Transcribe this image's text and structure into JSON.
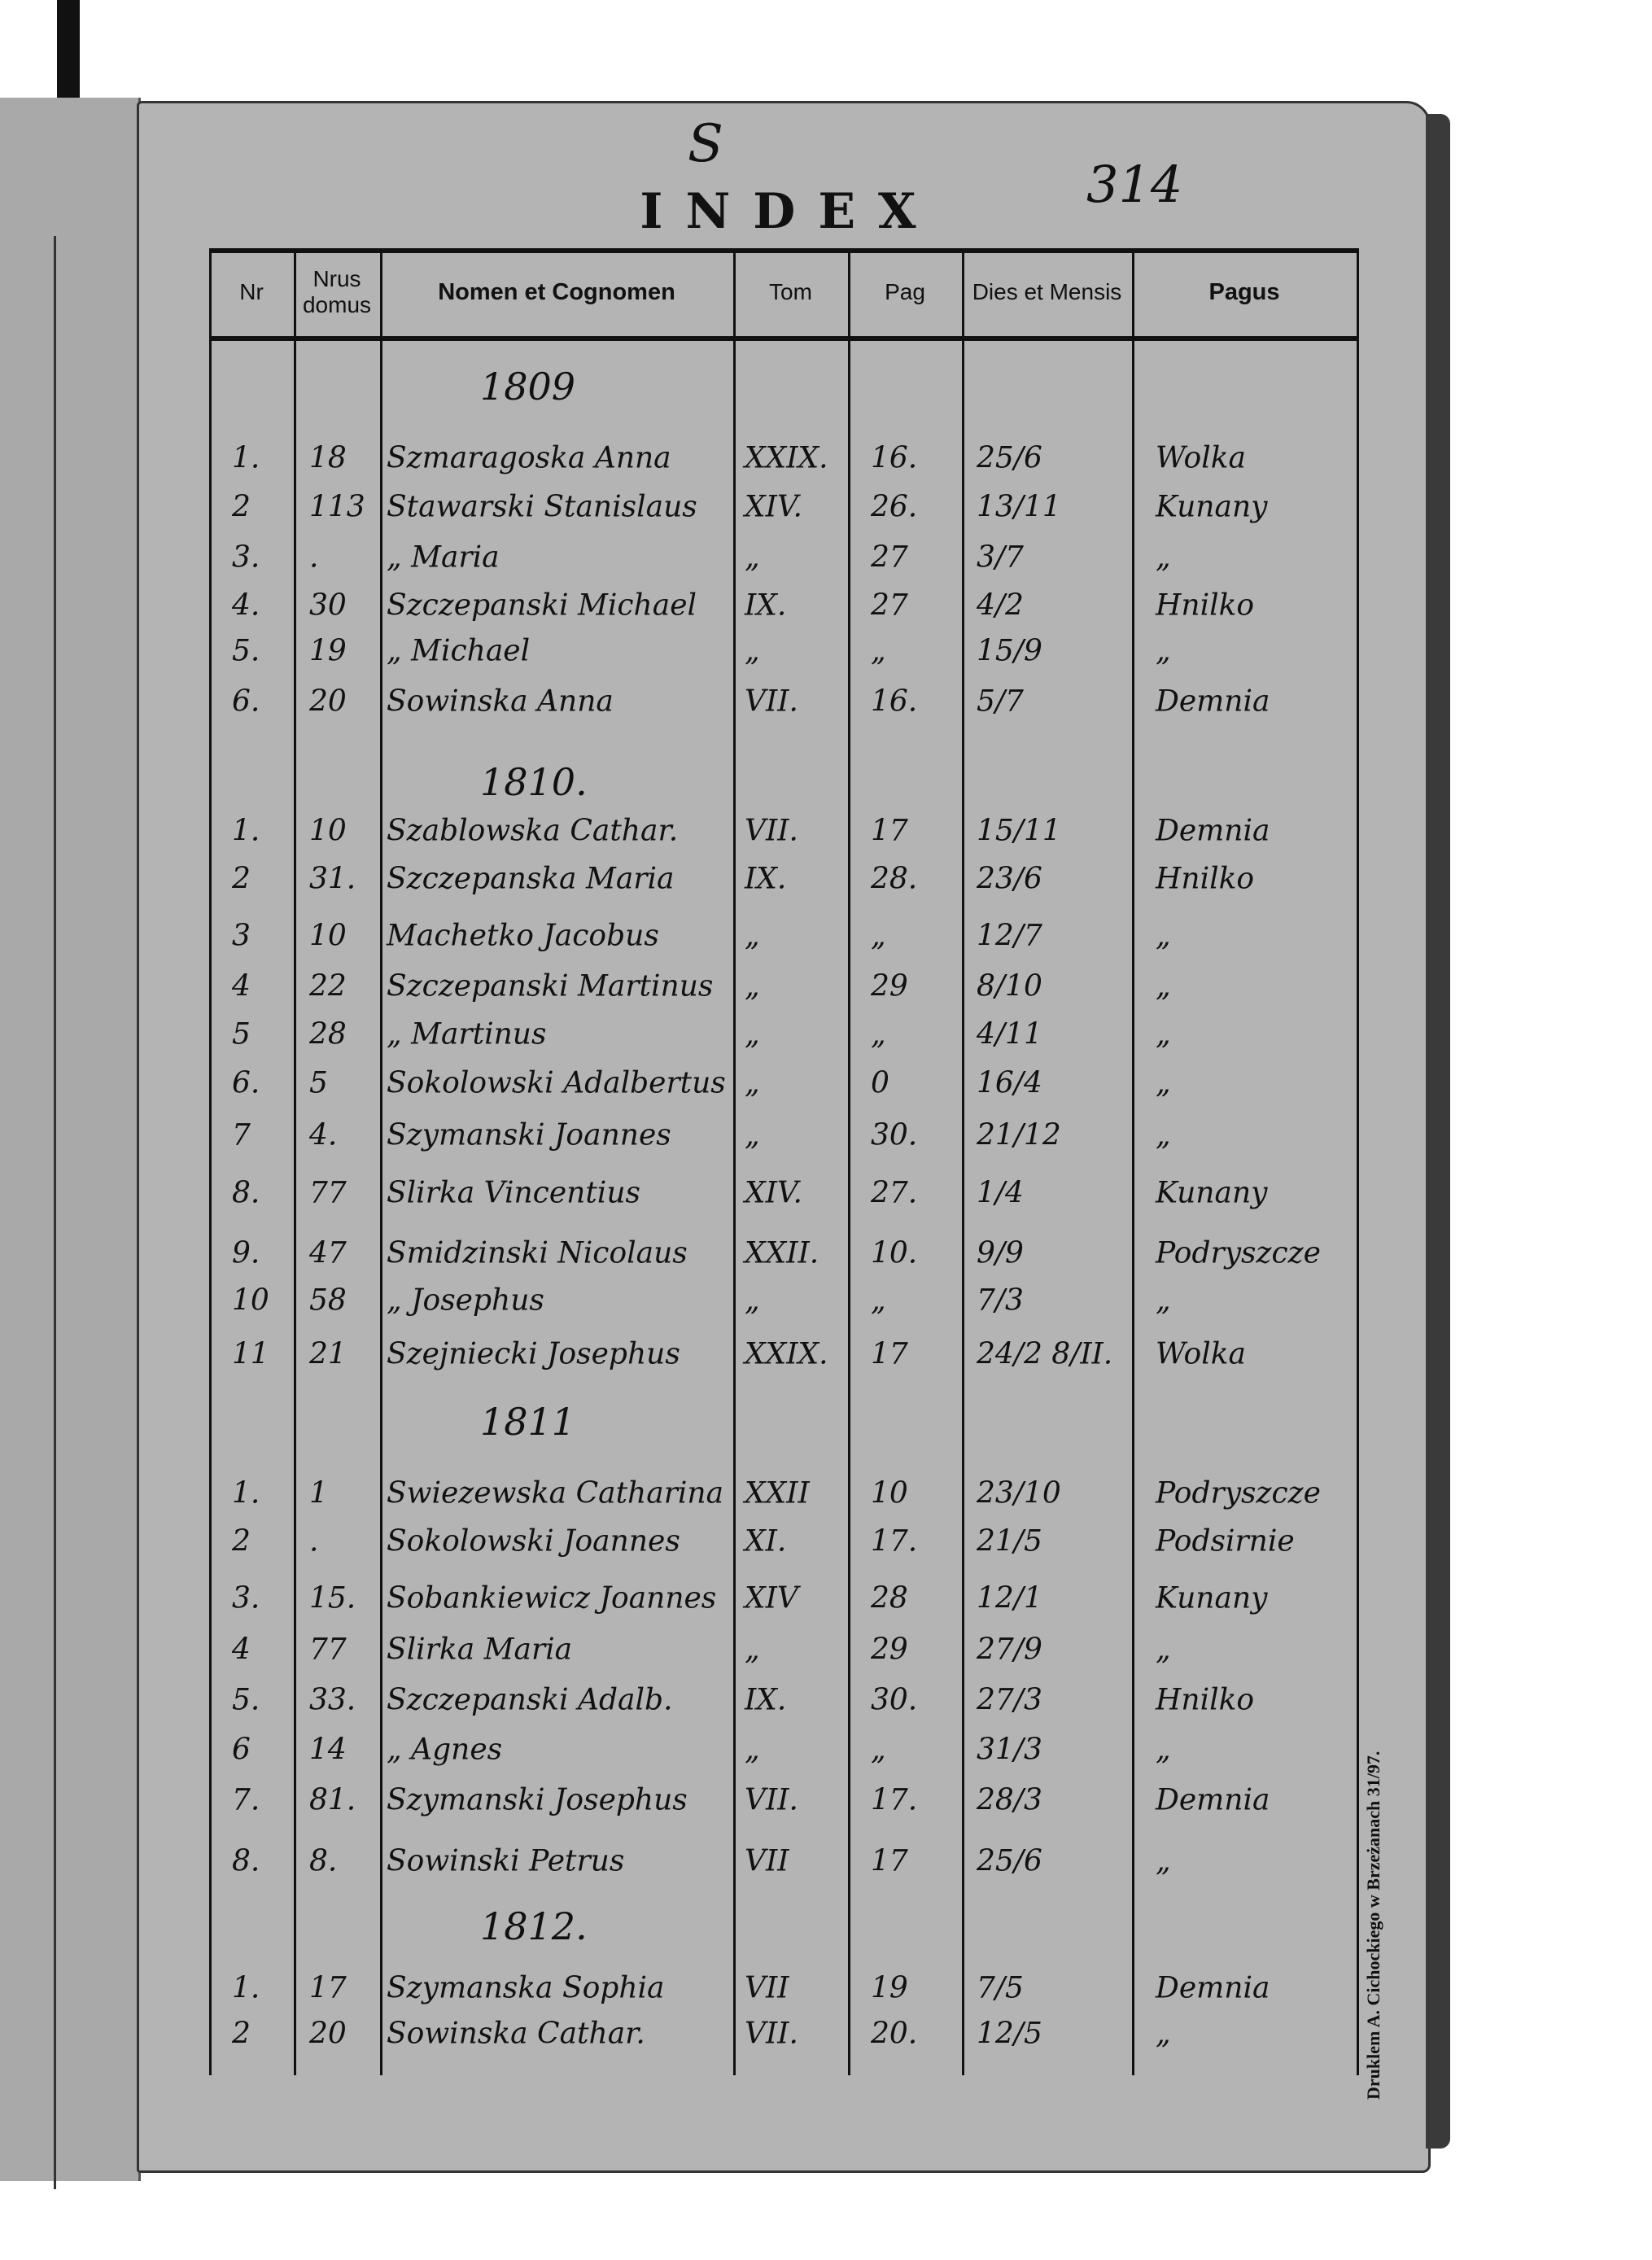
{
  "annotations": {
    "letter": "S",
    "folio": "314"
  },
  "title": "INDEX",
  "columns": [
    "Nr",
    "Nrus domus",
    "Nomen et Cognomen",
    "Tom",
    "Pag",
    "Dies et Mensis",
    "Pagus"
  ],
  "sections": [
    {
      "year": "1809",
      "rows": [
        [
          "1.",
          "18",
          "Szmaragoska Anna",
          "XXIX.",
          "16.",
          "25/6",
          "Wolka"
        ],
        [
          "2",
          "113",
          "Stawarski Stanislaus",
          "XIV.",
          "26.",
          "13/11",
          "Kunany"
        ],
        [
          "3.",
          ".",
          "„  Maria",
          "„",
          "27",
          "3/7",
          "„"
        ],
        [
          "4.",
          "30",
          "Szczepanski Michael",
          "IX.",
          "27",
          "4/2",
          "Hnilko"
        ],
        [
          "5.",
          "19",
          "„  Michael",
          "„",
          "„",
          "15/9",
          "„"
        ],
        [
          "6.",
          "20",
          "Sowinska Anna",
          "VII.",
          "16.",
          "5/7",
          "Demnia"
        ]
      ]
    },
    {
      "year": "1810.",
      "rows": [
        [
          "1.",
          "10",
          "Szablowska Cathar.",
          "VII.",
          "17",
          "15/11",
          "Demnia"
        ],
        [
          "2",
          "31.",
          "Szczepanska Maria",
          "IX.",
          "28.",
          "23/6",
          "Hnilko"
        ],
        [
          "3",
          "10",
          "Machetko Jacobus",
          "„",
          "„",
          "12/7",
          "„"
        ],
        [
          "4",
          "22",
          "Szczepanski Martinus",
          "„",
          "29",
          "8/10",
          "„"
        ],
        [
          "5",
          "28",
          "„  Martinus",
          "„",
          "„",
          "4/11",
          "„"
        ],
        [
          "6.",
          "5",
          "Sokolowski Adalbertus",
          "„",
          "0",
          "16/4",
          "„"
        ],
        [
          "7",
          "4.",
          "Szymanski Joannes",
          "„",
          "30.",
          "21/12",
          "„"
        ],
        [
          "8.",
          "77",
          "Slirka Vincentius",
          "XIV.",
          "27.",
          "1/4",
          "Kunany"
        ],
        [
          "9.",
          "47",
          "Smidzinski Nicolaus",
          "XXII.",
          "10.",
          "9/9",
          "Podryszcze"
        ],
        [
          "10",
          "58",
          "„  Josephus",
          "„",
          "„",
          "7/3",
          "„"
        ],
        [
          "11",
          "21",
          "Szejniecki Josephus",
          "XXIX.",
          "17",
          "24/2 8/II.",
          "Wolka"
        ]
      ]
    },
    {
      "year": "1811",
      "rows": [
        [
          "1.",
          "1",
          "Swiezewska Catharina",
          "XXII",
          "10",
          "23/10",
          "Podryszcze"
        ],
        [
          "2",
          ".",
          "Sokolowski Joannes",
          "XI.",
          "17.",
          "21/5",
          "Podsirnie"
        ],
        [
          "3.",
          "15.",
          "Sobankiewicz Joannes",
          "XIV",
          "28",
          "12/1",
          "Kunany"
        ],
        [
          "4",
          "77",
          "Slirka Maria",
          "„",
          "29",
          "27/9",
          "„"
        ],
        [
          "5.",
          "33.",
          "Szczepanski Adalb.",
          "IX.",
          "30.",
          "27/3",
          "Hnilko"
        ],
        [
          "6",
          "14",
          "„  Agnes",
          "„",
          "„",
          "31/3",
          "„"
        ],
        [
          "7.",
          "81.",
          "Szymanski Josephus",
          "VII.",
          "17.",
          "28/3",
          "Demnia"
        ],
        [
          "8.",
          "8.",
          "Sowinski Petrus",
          "VII",
          "17",
          "25/6",
          "„"
        ]
      ]
    },
    {
      "year": "1812.",
      "rows": [
        [
          "1.",
          "17",
          "Szymanska Sophia",
          "VII",
          "19",
          "7/5",
          "Demnia"
        ],
        [
          "2",
          "20",
          "Sowinska Cathar.",
          "VII.",
          "20.",
          "12/5",
          "„"
        ]
      ]
    }
  ],
  "imprint": "Druklem A. Cichockiego w Brzeżanach 31/97."
}
